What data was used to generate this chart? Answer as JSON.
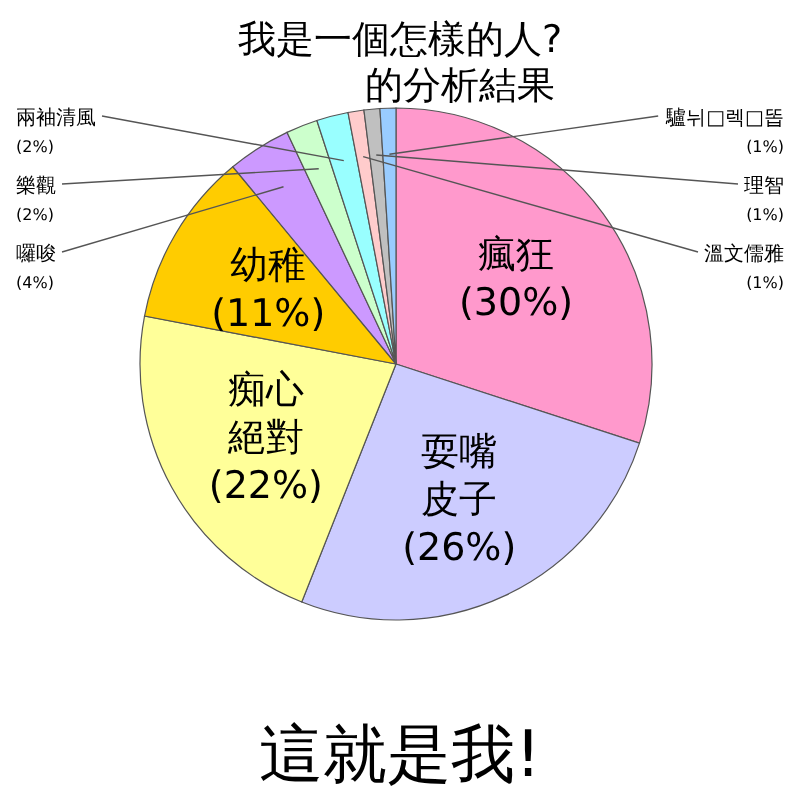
{
  "chart_data": {
    "type": "pie",
    "title": "我是一個怎樣的人?",
    "subtitle": "的分析結果",
    "categories": [
      "瘋狂",
      "耍嘴皮子",
      "痴心絕對",
      "幼稚",
      "囉唆",
      "樂觀",
      "兩袖清風",
      "溫文儒雅",
      "理智",
      "驢뉘□렉□똡"
    ],
    "values": [
      30,
      26,
      22,
      11,
      4,
      2,
      2,
      1,
      1,
      1
    ],
    "colors": [
      "#ff99cc",
      "#ccccff",
      "#ffff99",
      "#ffcc00",
      "#cc99ff",
      "#ccffcc",
      "#99ffff",
      "#ffcccc",
      "#c0c0c0",
      "#99ccff"
    ],
    "value_labels": [
      "(30%)",
      "(26%)",
      "(22%)",
      "(11%)",
      "(4%)",
      "(2%)",
      "(2%)",
      "(1%)",
      "(1%)",
      "(1%)"
    ],
    "annotations": [
      "這就是我!"
    ]
  }
}
